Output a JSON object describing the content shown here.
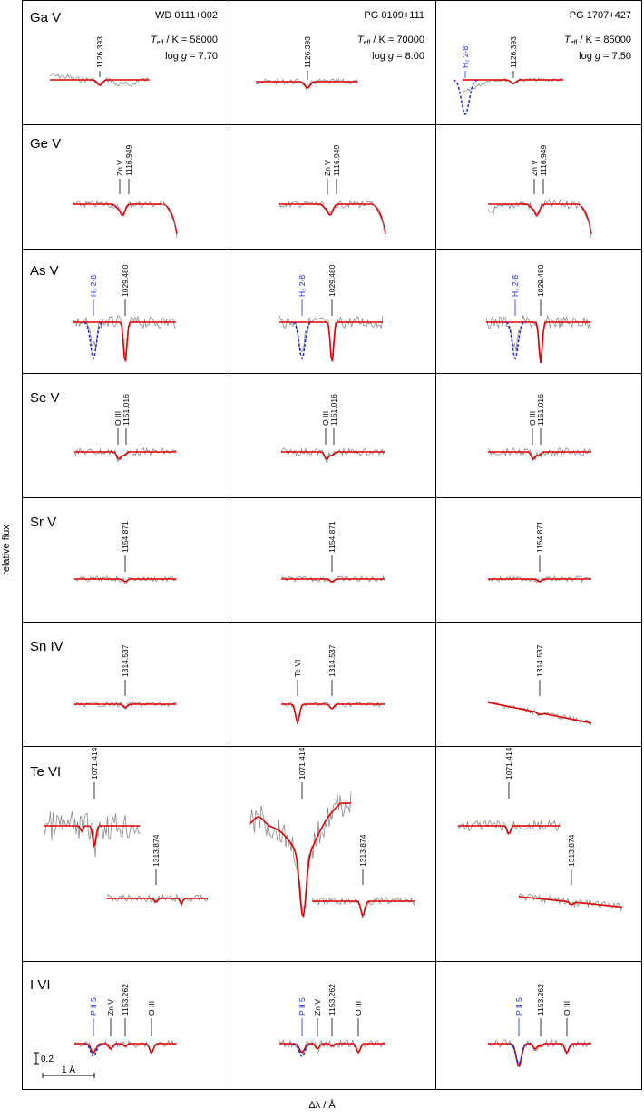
{
  "figure": {
    "y_axis_label": "relative flux",
    "x_axis_label": "Δλ / Å",
    "scale_bar": {
      "flux": "0.2",
      "wavelength": "1 Å"
    }
  },
  "stars": [
    {
      "name": "WD 0111+002",
      "teff_label": "T",
      "teff_sub": "eff",
      "teff_unit": " / K",
      "teff": "= 58000",
      "logg_label": "log",
      "logg_g": "g",
      "logg": "= 7.70"
    },
    {
      "name": "PG 0109+111",
      "teff_label": "T",
      "teff_sub": "eff",
      "teff_unit": " / K",
      "teff": "= 70000",
      "logg_label": "log",
      "logg_g": "g",
      "logg": "= 8.00"
    },
    {
      "name": "PG 1707+427",
      "teff_label": "T",
      "teff_sub": "eff",
      "teff_unit": " / K",
      "teff": "= 85000",
      "logg_label": "log",
      "logg_g": "g",
      "logg": "= 7.50"
    }
  ],
  "colors": {
    "observed": "#8a8a8a",
    "model": "#e00000",
    "ism": "#1a2ae0",
    "frame": "#000000"
  },
  "rows": [
    {
      "ion": "Ga V",
      "lines": [
        "1126.393"
      ],
      "others": [
        "H₂ 2-8"
      ]
    },
    {
      "ion": "Ge V",
      "lines": [
        "1116.949"
      ],
      "others": [
        "Zn V"
      ]
    },
    {
      "ion": "As V",
      "lines": [
        "1029.480"
      ],
      "others": [
        "H₂ 2-8"
      ]
    },
    {
      "ion": "Se V",
      "lines": [
        "1151.016"
      ],
      "others": [
        "O III"
      ]
    },
    {
      "ion": "Sr V",
      "lines": [
        "1154.871"
      ],
      "others": []
    },
    {
      "ion": "Sn IV",
      "lines": [
        "1314.537"
      ],
      "others": [
        "Te VI"
      ]
    },
    {
      "ion": "Te VI",
      "lines": [
        "1071.414",
        "1313.874"
      ],
      "others": []
    },
    {
      "ion": "I VI",
      "lines": [
        "1153.262"
      ],
      "others": [
        "P II 5",
        "Zn V",
        "O III"
      ]
    }
  ]
}
